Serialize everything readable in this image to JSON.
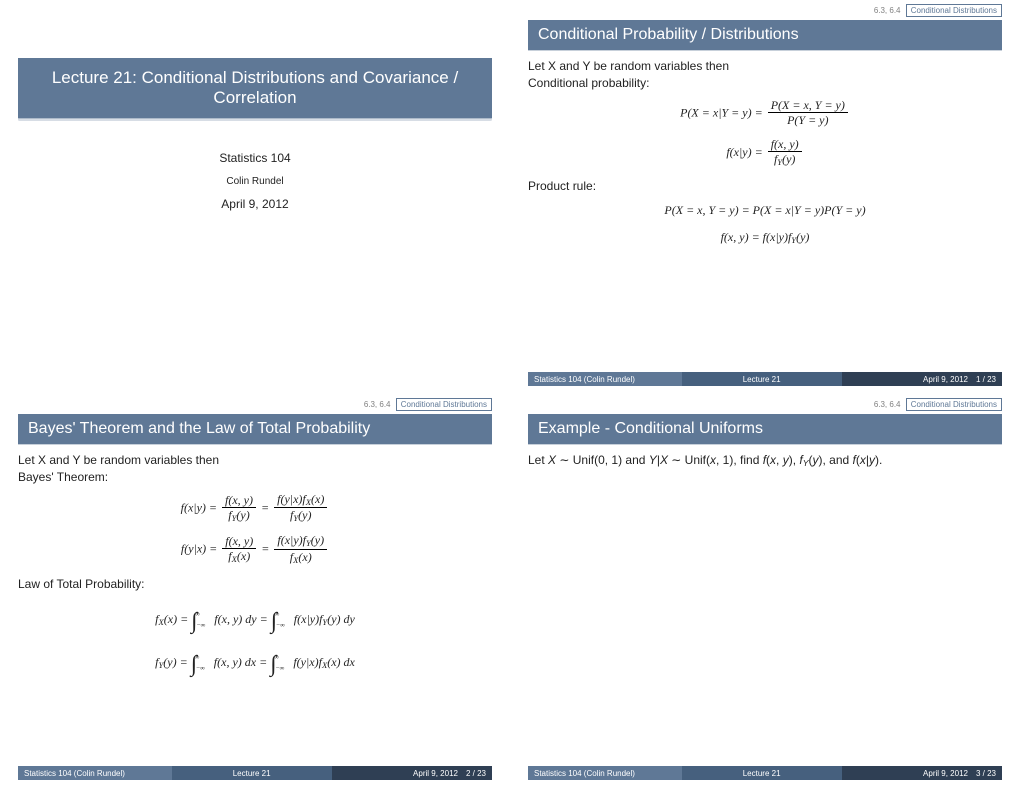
{
  "colors": {
    "accent": "#5f7896",
    "accent_dark": "#46607e",
    "accent_darker": "#2f3f54",
    "text": "#222222",
    "muted": "#808080",
    "background": "#ffffff"
  },
  "typography": {
    "title_fontsize_pt": 16,
    "bigtitle_fontsize_pt": 17,
    "body_fontsize_pt": 12,
    "footer_fontsize_pt": 8,
    "header_fontsize_pt": 8,
    "font_family": "Helvetica"
  },
  "header": {
    "section_number": "6.3, 6.4",
    "section_name": "Conditional Distributions"
  },
  "footer": {
    "left": "Statistics 104 (Colin Rundel)",
    "center": "Lecture 21",
    "date": "April 9, 2012",
    "total_pages": 23
  },
  "slide_title_page": {
    "title": "Lecture 21: Conditional Distributions and Covariance / Correlation",
    "course": "Statistics 104",
    "author": "Colin Rundel",
    "date": "April 9, 2012"
  },
  "slide1": {
    "title": "Conditional Probability / Distributions",
    "intro": "Let X and Y be random variables then",
    "label1": "Conditional probability:",
    "eq1_lhs": "P(X = x|Y = y) =",
    "eq1_num": "P(X = x, Y = y)",
    "eq1_den": "P(Y = y)",
    "eq2_lhs": "f(x|y) =",
    "eq2_num": "f(x, y)",
    "eq2_den": "f Y (y)",
    "label2": "Product rule:",
    "eq3": "P(X = x, Y = y) = P(X = x|Y = y)P(Y = y)",
    "eq4": "f(x, y) = f(x|y)f Y (y)",
    "page_number": 1
  },
  "slide2": {
    "title": "Bayes' Theorem and the Law of Total Probability",
    "intro": "Let X and Y be random variables then",
    "label1": "Bayes' Theorem:",
    "eq1_lhs": "f(x|y) =",
    "eq1_mid_num": "f(x, y)",
    "eq1_mid_den": "f Y (y)",
    "eq1_eqs": " = ",
    "eq1_rhs_num": "f(y|x)f X (x)",
    "eq1_rhs_den": "f Y (y)",
    "eq2_lhs": "f(y|x) =",
    "eq2_mid_num": "f(x, y)",
    "eq2_mid_den": "f X (x)",
    "eq2_rhs_num": "f(x|y)f Y (y)",
    "eq2_rhs_den": "f X (x)",
    "label2": "Law of Total Probability:",
    "eq3_lhs": "f X (x) =",
    "eq3_mid": "f(x, y) dy",
    "eq3_rhs": "f(x|y)f Y (y) dy",
    "eq4_lhs": "f Y (y) =",
    "eq4_mid": "f(x, y) dx",
    "eq4_rhs": "f(y|x)f X (x) dx",
    "page_number": 2
  },
  "slide3": {
    "title": "Example - Conditional Uniforms",
    "body": "Let X ∼ Unif(0, 1) and Y|X ∼ Unif(x, 1), find f(x, y), f Y (y), and f(x|y).",
    "page_number": 3
  }
}
